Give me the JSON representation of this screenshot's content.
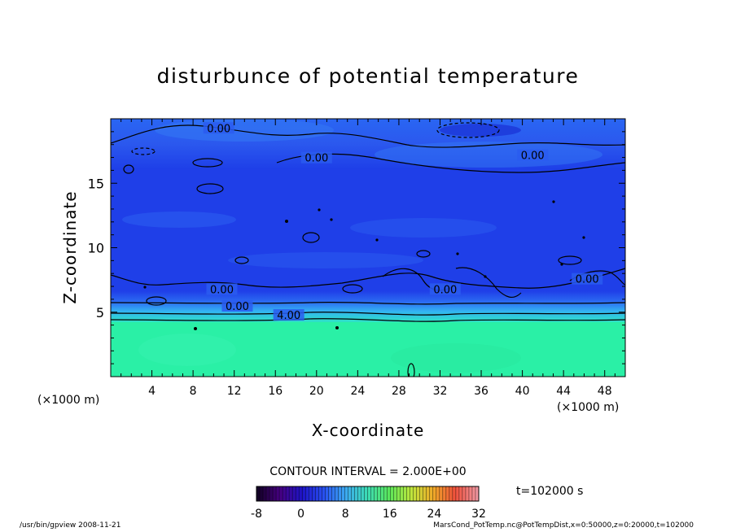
{
  "chart_data": {
    "type": "heatmap",
    "title": "disturbunce of potential temperature",
    "xlabel": "X-coordinate",
    "ylabel": "Z-coordinate",
    "x_unit_left": "(×1000 m)",
    "x_unit_right": "(×1000 m)",
    "xlim": [
      0,
      50
    ],
    "ylim": [
      0,
      20
    ],
    "xticks": [
      4,
      8,
      12,
      16,
      20,
      24,
      28,
      32,
      36,
      40,
      44,
      48
    ],
    "yticks": [
      5,
      10,
      15
    ],
    "contour_interval": "CONTOUR INTERVAL = 2.000E+00",
    "contour_labels": [
      {
        "text": "0.00",
        "x": 10.5,
        "z": 19.1
      },
      {
        "text": "0.00",
        "x": 20.0,
        "z": 16.8
      },
      {
        "text": "0.00",
        "x": 41.0,
        "z": 17.0
      },
      {
        "text": "0.00",
        "x": 10.8,
        "z": 6.6
      },
      {
        "text": "0.00",
        "x": 12.3,
        "z": 5.3
      },
      {
        "text": "4.00",
        "x": 17.3,
        "z": 4.6
      },
      {
        "text": "0.00",
        "x": 32.5,
        "z": 6.6
      },
      {
        "text": "0.00",
        "x": 46.3,
        "z": 7.4
      }
    ],
    "fields": {
      "low_layer_below_z": 4.4,
      "low_layer_value": 8,
      "upper_value": 0
    },
    "colorbar": {
      "ticks": [
        -8,
        0,
        8,
        16,
        24,
        32
      ],
      "min": -8,
      "max": 32
    },
    "time_label": "t=102000 s"
  },
  "footer": {
    "left": "/usr/bin/gpview   2008-11-21",
    "right": "MarsCond_PotTemp.nc@PotTempDist,x=0:50000,z=0:20000,t=102000"
  },
  "colors": {
    "deep_blue": "#1f3fe8",
    "mid_blue": "#2a5cf0",
    "light_blue": "#3a8ff5",
    "cyan": "#2fc5ee",
    "sea_green": "#2af0a6"
  }
}
